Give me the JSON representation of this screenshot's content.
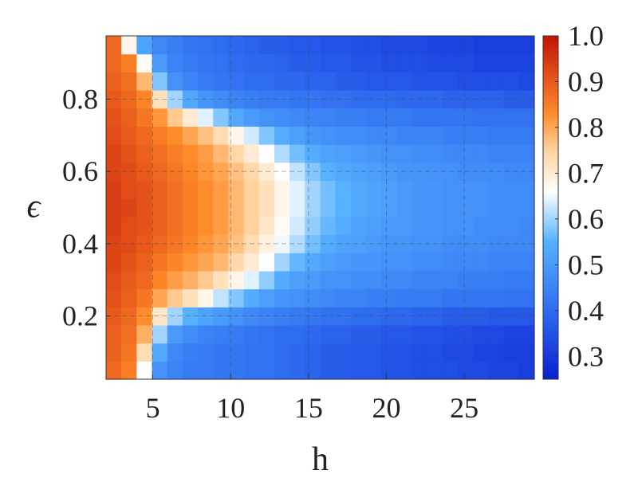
{
  "chart_data": {
    "type": "heatmap",
    "title": "",
    "xlabel": "h",
    "ylabel": "ϵ",
    "xlim": [
      2,
      29.5
    ],
    "ylim": [
      0.025,
      0.975
    ],
    "x_ticks": [
      5,
      10,
      15,
      20,
      25
    ],
    "x_tick_labels": [
      "5",
      "10",
      "15",
      "20",
      "25"
    ],
    "y_ticks": [
      0.2,
      0.4,
      0.6,
      0.8
    ],
    "y_tick_labels": [
      "0.2",
      "0.4",
      "0.6",
      "0.8"
    ],
    "grid": true,
    "x": [
      2.5,
      3.5,
      4.5,
      5.5,
      6.5,
      7.5,
      8.5,
      9.5,
      10.5,
      11.5,
      12.5,
      13.5,
      14.5,
      15.5,
      16.5,
      17.5,
      18.5,
      19.5,
      20.5,
      21.5,
      22.5,
      23.5,
      24.5,
      25.5,
      26.5,
      27.5,
      28.5,
      29.5
    ],
    "y": [
      0.05,
      0.1,
      0.15,
      0.2,
      0.25,
      0.3,
      0.35,
      0.4,
      0.45,
      0.5,
      0.55,
      0.6,
      0.65,
      0.7,
      0.75,
      0.8,
      0.85,
      0.9,
      0.95
    ],
    "z_description": "values[i][j] corresponds to y[i] (rows, bottom to top) and x[j] (columns)",
    "values": [
      [
        0.88,
        0.85,
        0.66,
        0.48,
        0.45,
        0.43,
        0.43,
        0.42,
        0.42,
        0.41,
        0.41,
        0.4,
        0.39,
        0.38,
        0.37,
        0.37,
        0.36,
        0.36,
        0.35,
        0.35,
        0.34,
        0.34,
        0.34,
        0.33,
        0.33,
        0.32,
        0.32,
        0.31
      ],
      [
        0.89,
        0.86,
        0.73,
        0.53,
        0.46,
        0.44,
        0.43,
        0.42,
        0.42,
        0.41,
        0.41,
        0.4,
        0.39,
        0.38,
        0.37,
        0.37,
        0.36,
        0.36,
        0.35,
        0.35,
        0.34,
        0.34,
        0.33,
        0.33,
        0.32,
        0.32,
        0.31,
        0.31
      ],
      [
        0.89,
        0.87,
        0.79,
        0.6,
        0.5,
        0.47,
        0.45,
        0.44,
        0.43,
        0.42,
        0.41,
        0.4,
        0.4,
        0.39,
        0.38,
        0.38,
        0.37,
        0.37,
        0.36,
        0.36,
        0.35,
        0.35,
        0.34,
        0.34,
        0.33,
        0.33,
        0.32,
        0.32
      ],
      [
        0.9,
        0.88,
        0.83,
        0.71,
        0.6,
        0.55,
        0.52,
        0.5,
        0.48,
        0.46,
        0.45,
        0.44,
        0.43,
        0.42,
        0.41,
        0.41,
        0.4,
        0.4,
        0.39,
        0.39,
        0.38,
        0.38,
        0.37,
        0.37,
        0.37,
        0.36,
        0.36,
        0.36
      ],
      [
        0.91,
        0.89,
        0.86,
        0.8,
        0.76,
        0.72,
        0.68,
        0.62,
        0.58,
        0.54,
        0.51,
        0.49,
        0.48,
        0.47,
        0.46,
        0.45,
        0.45,
        0.44,
        0.44,
        0.43,
        0.43,
        0.43,
        0.42,
        0.42,
        0.42,
        0.42,
        0.41,
        0.41
      ],
      [
        0.92,
        0.9,
        0.88,
        0.84,
        0.81,
        0.79,
        0.76,
        0.72,
        0.68,
        0.64,
        0.59,
        0.54,
        0.51,
        0.5,
        0.48,
        0.48,
        0.47,
        0.47,
        0.46,
        0.46,
        0.45,
        0.45,
        0.45,
        0.44,
        0.44,
        0.44,
        0.43,
        0.43
      ],
      [
        0.93,
        0.91,
        0.89,
        0.86,
        0.84,
        0.82,
        0.8,
        0.78,
        0.74,
        0.7,
        0.66,
        0.6,
        0.56,
        0.53,
        0.51,
        0.5,
        0.49,
        0.49,
        0.48,
        0.48,
        0.47,
        0.47,
        0.46,
        0.46,
        0.46,
        0.45,
        0.45,
        0.45
      ],
      [
        0.93,
        0.92,
        0.9,
        0.88,
        0.86,
        0.84,
        0.82,
        0.8,
        0.77,
        0.73,
        0.69,
        0.65,
        0.61,
        0.57,
        0.54,
        0.52,
        0.51,
        0.5,
        0.49,
        0.49,
        0.48,
        0.48,
        0.47,
        0.47,
        0.47,
        0.46,
        0.46,
        0.46
      ],
      [
        0.94,
        0.92,
        0.91,
        0.89,
        0.87,
        0.85,
        0.83,
        0.81,
        0.78,
        0.75,
        0.71,
        0.67,
        0.63,
        0.59,
        0.56,
        0.54,
        0.52,
        0.51,
        0.5,
        0.5,
        0.49,
        0.49,
        0.48,
        0.48,
        0.47,
        0.47,
        0.47,
        0.46
      ],
      [
        0.94,
        0.93,
        0.91,
        0.89,
        0.87,
        0.85,
        0.83,
        0.81,
        0.78,
        0.75,
        0.72,
        0.68,
        0.64,
        0.6,
        0.57,
        0.55,
        0.53,
        0.52,
        0.51,
        0.5,
        0.49,
        0.49,
        0.48,
        0.48,
        0.48,
        0.47,
        0.47,
        0.47
      ],
      [
        0.94,
        0.92,
        0.91,
        0.89,
        0.87,
        0.85,
        0.83,
        0.81,
        0.78,
        0.75,
        0.72,
        0.68,
        0.64,
        0.6,
        0.57,
        0.55,
        0.53,
        0.52,
        0.51,
        0.5,
        0.49,
        0.49,
        0.48,
        0.48,
        0.48,
        0.47,
        0.47,
        0.47
      ],
      [
        0.93,
        0.92,
        0.9,
        0.88,
        0.86,
        0.84,
        0.82,
        0.8,
        0.77,
        0.74,
        0.7,
        0.66,
        0.62,
        0.58,
        0.55,
        0.53,
        0.52,
        0.51,
        0.5,
        0.49,
        0.49,
        0.48,
        0.48,
        0.47,
        0.47,
        0.47,
        0.46,
        0.46
      ],
      [
        0.93,
        0.91,
        0.89,
        0.87,
        0.85,
        0.83,
        0.81,
        0.78,
        0.74,
        0.7,
        0.66,
        0.61,
        0.57,
        0.54,
        0.52,
        0.51,
        0.5,
        0.49,
        0.48,
        0.48,
        0.47,
        0.47,
        0.46,
        0.46,
        0.46,
        0.45,
        0.45,
        0.45
      ],
      [
        0.92,
        0.9,
        0.88,
        0.85,
        0.83,
        0.8,
        0.77,
        0.73,
        0.68,
        0.63,
        0.58,
        0.54,
        0.51,
        0.49,
        0.48,
        0.47,
        0.47,
        0.46,
        0.46,
        0.45,
        0.45,
        0.45,
        0.44,
        0.44,
        0.44,
        0.43,
        0.43,
        0.43
      ],
      [
        0.91,
        0.89,
        0.86,
        0.82,
        0.76,
        0.7,
        0.64,
        0.58,
        0.53,
        0.5,
        0.48,
        0.47,
        0.46,
        0.45,
        0.45,
        0.44,
        0.44,
        0.43,
        0.43,
        0.43,
        0.42,
        0.42,
        0.42,
        0.42,
        0.41,
        0.41,
        0.41,
        0.41
      ],
      [
        0.9,
        0.88,
        0.84,
        0.72,
        0.6,
        0.53,
        0.49,
        0.47,
        0.45,
        0.44,
        0.43,
        0.43,
        0.42,
        0.42,
        0.41,
        0.41,
        0.4,
        0.4,
        0.4,
        0.39,
        0.39,
        0.39,
        0.38,
        0.38,
        0.38,
        0.38,
        0.37,
        0.37
      ],
      [
        0.89,
        0.87,
        0.78,
        0.58,
        0.48,
        0.45,
        0.43,
        0.42,
        0.41,
        0.4,
        0.4,
        0.39,
        0.39,
        0.38,
        0.38,
        0.37,
        0.37,
        0.36,
        0.36,
        0.36,
        0.35,
        0.35,
        0.35,
        0.34,
        0.34,
        0.34,
        0.34,
        0.33
      ],
      [
        0.88,
        0.85,
        0.67,
        0.5,
        0.45,
        0.43,
        0.42,
        0.41,
        0.4,
        0.39,
        0.39,
        0.38,
        0.37,
        0.37,
        0.36,
        0.36,
        0.35,
        0.35,
        0.34,
        0.34,
        0.34,
        0.33,
        0.33,
        0.33,
        0.32,
        0.32,
        0.32,
        0.32
      ],
      [
        0.88,
        0.68,
        0.52,
        0.46,
        0.44,
        0.42,
        0.41,
        0.4,
        0.39,
        0.38,
        0.37,
        0.37,
        0.36,
        0.36,
        0.35,
        0.35,
        0.34,
        0.34,
        0.33,
        0.33,
        0.33,
        0.32,
        0.32,
        0.32,
        0.31,
        0.31,
        0.31,
        0.31
      ]
    ],
    "colorbar": {
      "min": 0.25,
      "max": 1.0,
      "ticks": [
        0.3,
        0.4,
        0.5,
        0.6,
        0.7,
        0.8,
        0.9,
        1.0
      ],
      "tick_labels": [
        "0.3",
        "0.4",
        "0.5",
        "0.6",
        "0.7",
        "0.8",
        "0.9",
        "1.0"
      ],
      "colormap_stops": [
        {
          "v": 0.25,
          "color": "#0b1fd1"
        },
        {
          "v": 0.4,
          "color": "#2f6df0"
        },
        {
          "v": 0.55,
          "color": "#56b1ff"
        },
        {
          "v": 0.66,
          "color": "#ffffff"
        },
        {
          "v": 0.75,
          "color": "#ffd29e"
        },
        {
          "v": 0.83,
          "color": "#ff8c2a"
        },
        {
          "v": 1.0,
          "color": "#c41208"
        }
      ]
    }
  }
}
